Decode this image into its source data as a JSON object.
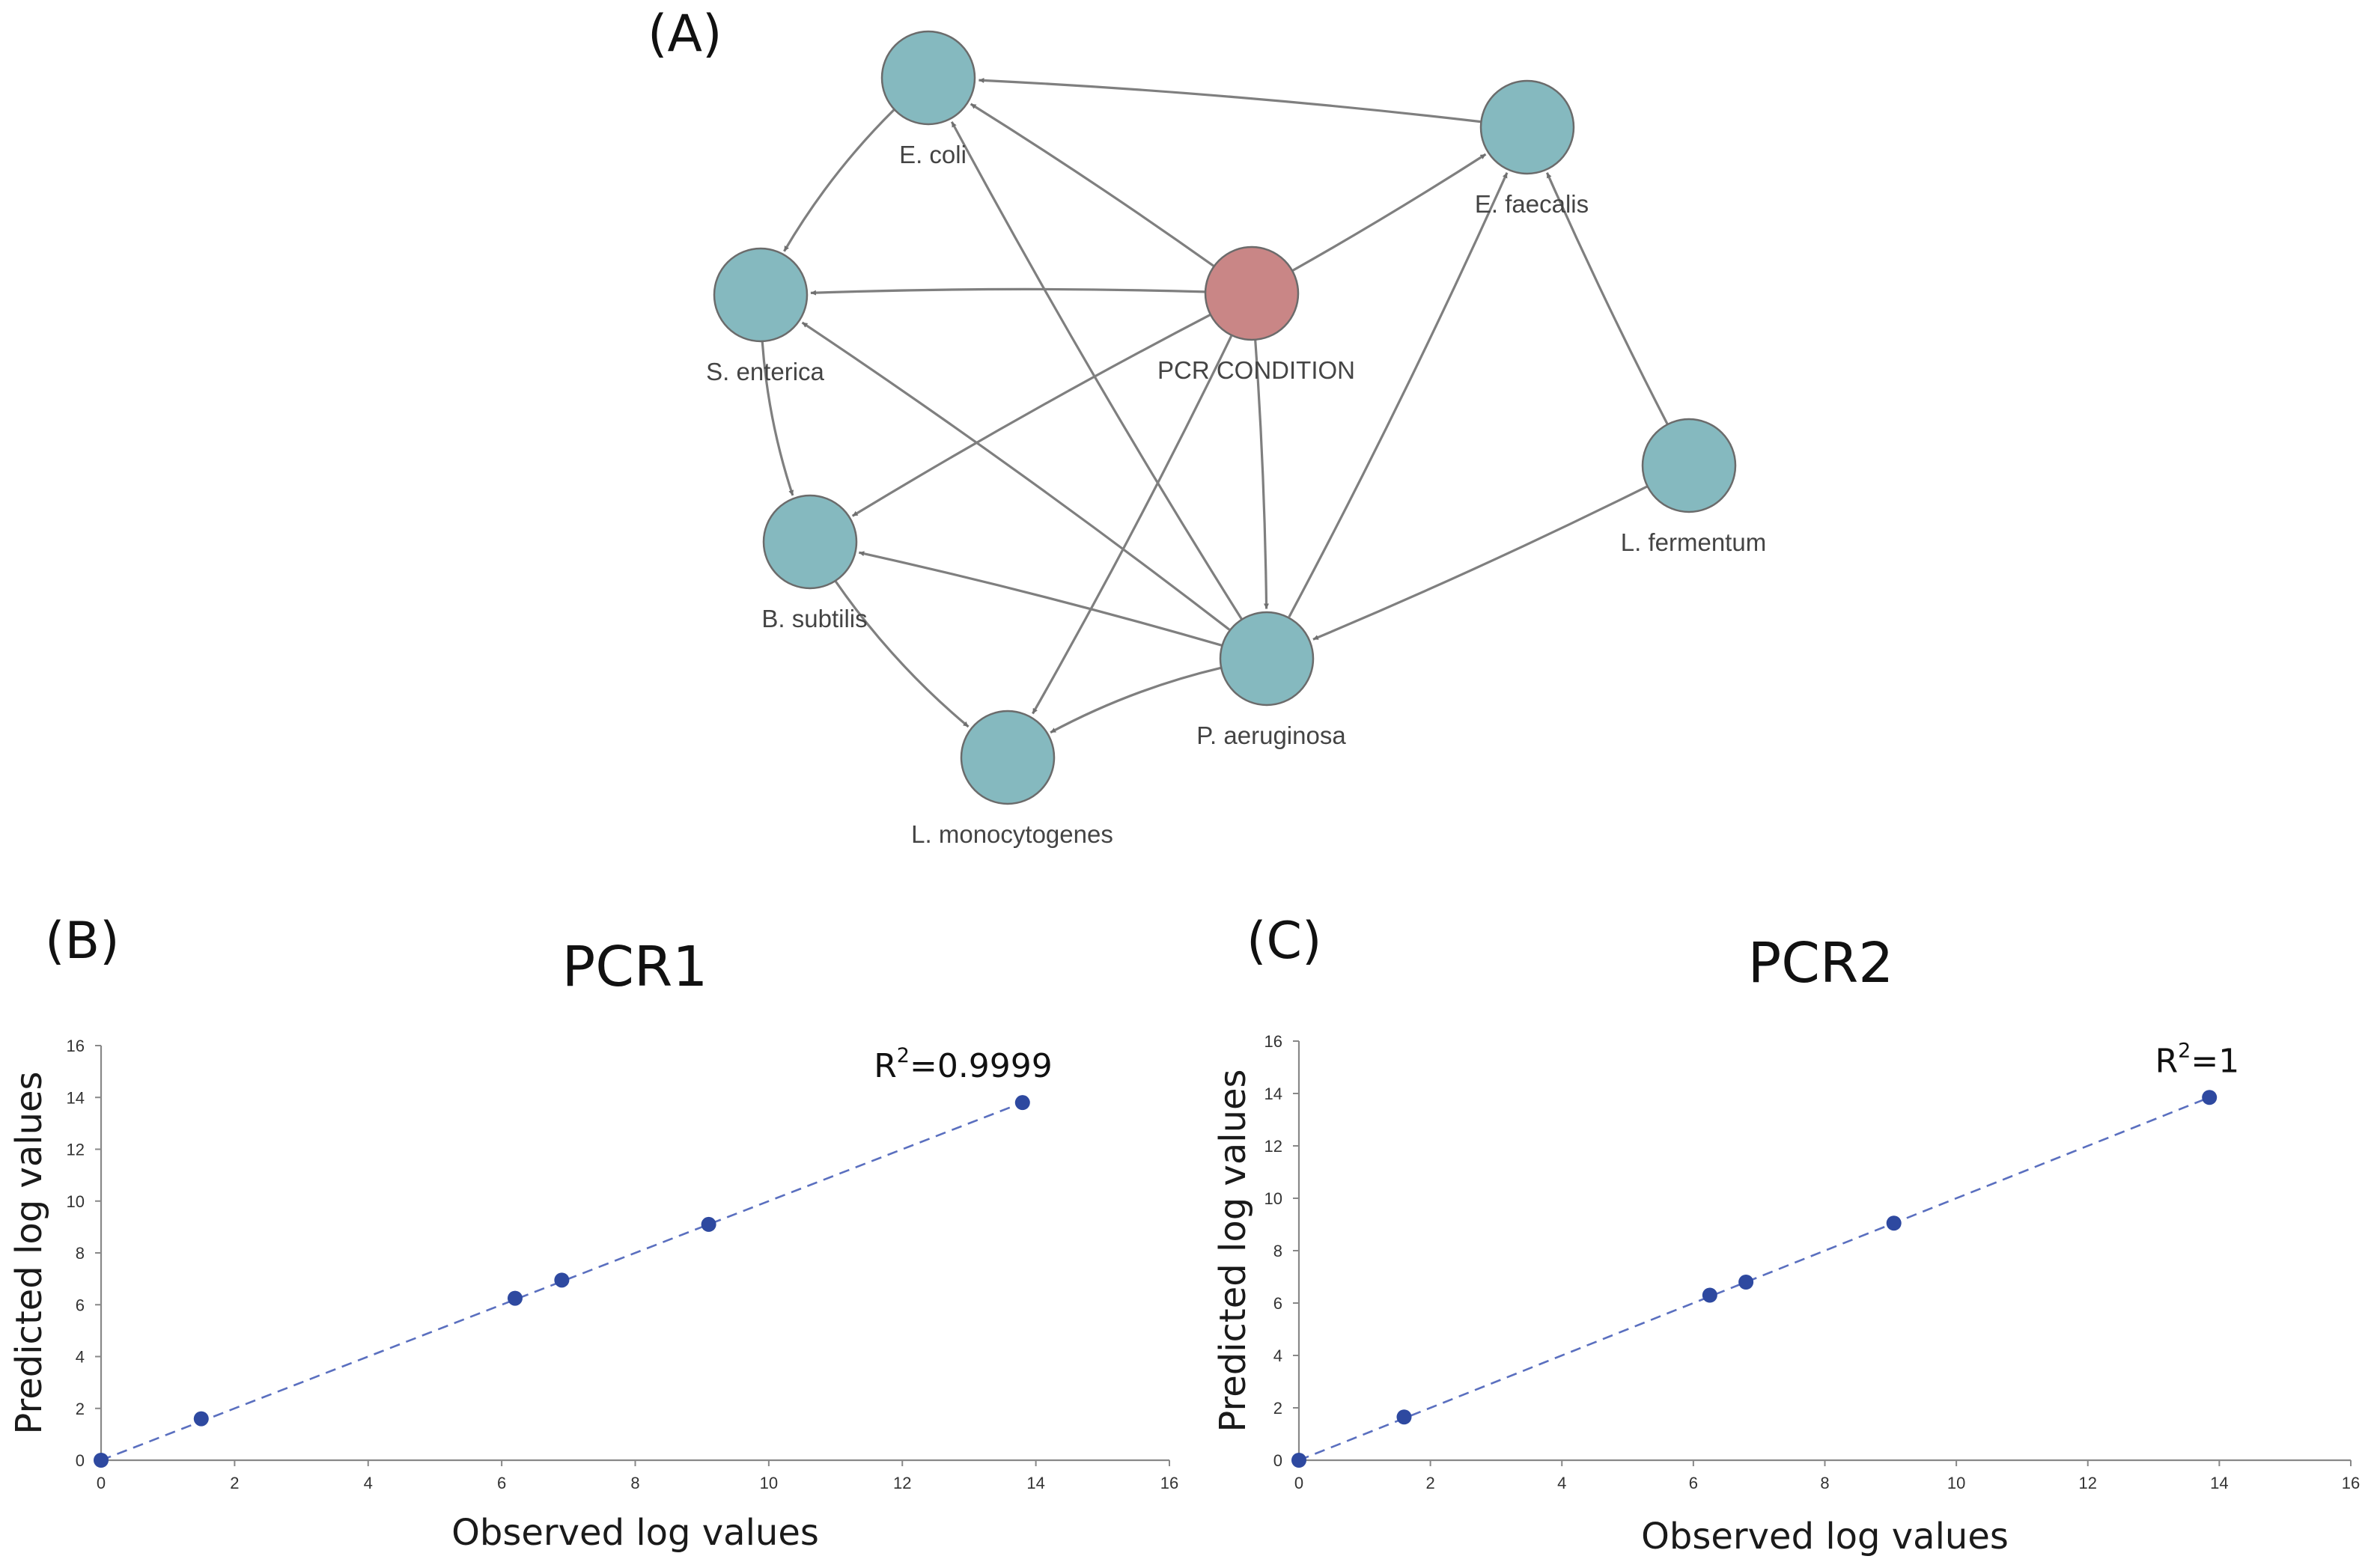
{
  "network": {
    "panel_label": "(A)",
    "node_color": "#85b9bf",
    "condition_color": "#c98686",
    "edge_color": "#7f7f7f",
    "nodes": [
      {
        "id": "ecoli",
        "label": "E. coli",
        "type": "species"
      },
      {
        "id": "efaecalis",
        "label": "E. faecalis",
        "type": "species"
      },
      {
        "id": "senterica",
        "label": "S. enterica",
        "type": "species"
      },
      {
        "id": "pcr",
        "label": "PCR CONDITION",
        "type": "condition"
      },
      {
        "id": "lfermentum",
        "label": "L. fermentum",
        "type": "species"
      },
      {
        "id": "bsubtilis",
        "label": "B. subtilis",
        "type": "species"
      },
      {
        "id": "paeruginosa",
        "label": "P. aeruginosa",
        "type": "species"
      },
      {
        "id": "lmono",
        "label": "L. monocytogenes",
        "type": "species"
      }
    ],
    "edges": [
      {
        "from": "efaecalis",
        "to": "ecoli"
      },
      {
        "from": "pcr",
        "to": "ecoli"
      },
      {
        "from": "pcr",
        "to": "efaecalis"
      },
      {
        "from": "pcr",
        "to": "senterica"
      },
      {
        "from": "pcr",
        "to": "bsubtilis"
      },
      {
        "from": "pcr",
        "to": "paeruginosa"
      },
      {
        "from": "pcr",
        "to": "lmono"
      },
      {
        "from": "ecoli",
        "to": "senterica"
      },
      {
        "from": "senterica",
        "to": "bsubtilis"
      },
      {
        "from": "bsubtilis",
        "to": "lmono"
      },
      {
        "from": "paeruginosa",
        "to": "ecoli"
      },
      {
        "from": "paeruginosa",
        "to": "efaecalis"
      },
      {
        "from": "paeruginosa",
        "to": "senterica"
      },
      {
        "from": "paeruginosa",
        "to": "bsubtilis"
      },
      {
        "from": "paeruginosa",
        "to": "lmono"
      },
      {
        "from": "lfermentum",
        "to": "efaecalis"
      },
      {
        "from": "lfermentum",
        "to": "paeruginosa"
      }
    ]
  },
  "chart_data": [
    {
      "panel_label": "(B)",
      "type": "scatter",
      "title": "PCR1",
      "xlabel": "Observed log values",
      "ylabel": "Predicted log values",
      "xlim": [
        0,
        16
      ],
      "ylim": [
        0,
        16
      ],
      "xticks": [
        "0",
        "2",
        "4",
        "6",
        "8",
        "10",
        "12",
        "14",
        "16"
      ],
      "yticks": [
        "0",
        "2",
        "4",
        "6",
        "8",
        "10",
        "12",
        "14",
        "16"
      ],
      "x": [
        0,
        1.5,
        6.2,
        6.9,
        9.1,
        13.8
      ],
      "y": [
        0,
        1.6,
        6.25,
        6.95,
        9.1,
        13.8
      ],
      "trendline": {
        "style": "dashed",
        "from": [
          0,
          0
        ],
        "to": [
          13.8,
          13.8
        ]
      },
      "annotation": {
        "text": "R",
        "sup": "2",
        "value": "=0.9999"
      },
      "point_color": "#2e49a0",
      "line_color": "#5a6fbf"
    },
    {
      "panel_label": "(C)",
      "type": "scatter",
      "title": "PCR2",
      "xlabel": "Observed log values",
      "ylabel": "Predicted log values",
      "xlim": [
        0,
        16
      ],
      "ylim": [
        0,
        16
      ],
      "xticks": [
        "0",
        "2",
        "4",
        "6",
        "8",
        "10",
        "12",
        "14",
        "16"
      ],
      "yticks": [
        "0",
        "2",
        "4",
        "6",
        "8",
        "10",
        "12",
        "14",
        "16"
      ],
      "x": [
        0,
        1.6,
        6.25,
        6.8,
        9.05,
        13.85
      ],
      "y": [
        0,
        1.65,
        6.3,
        6.8,
        9.05,
        13.85
      ],
      "trendline": {
        "style": "dashed",
        "from": [
          0,
          0
        ],
        "to": [
          13.85,
          13.85
        ]
      },
      "annotation": {
        "text": "R",
        "sup": "2",
        "value": "=1"
      },
      "point_color": "#2e49a0",
      "line_color": "#5a6fbf"
    }
  ]
}
